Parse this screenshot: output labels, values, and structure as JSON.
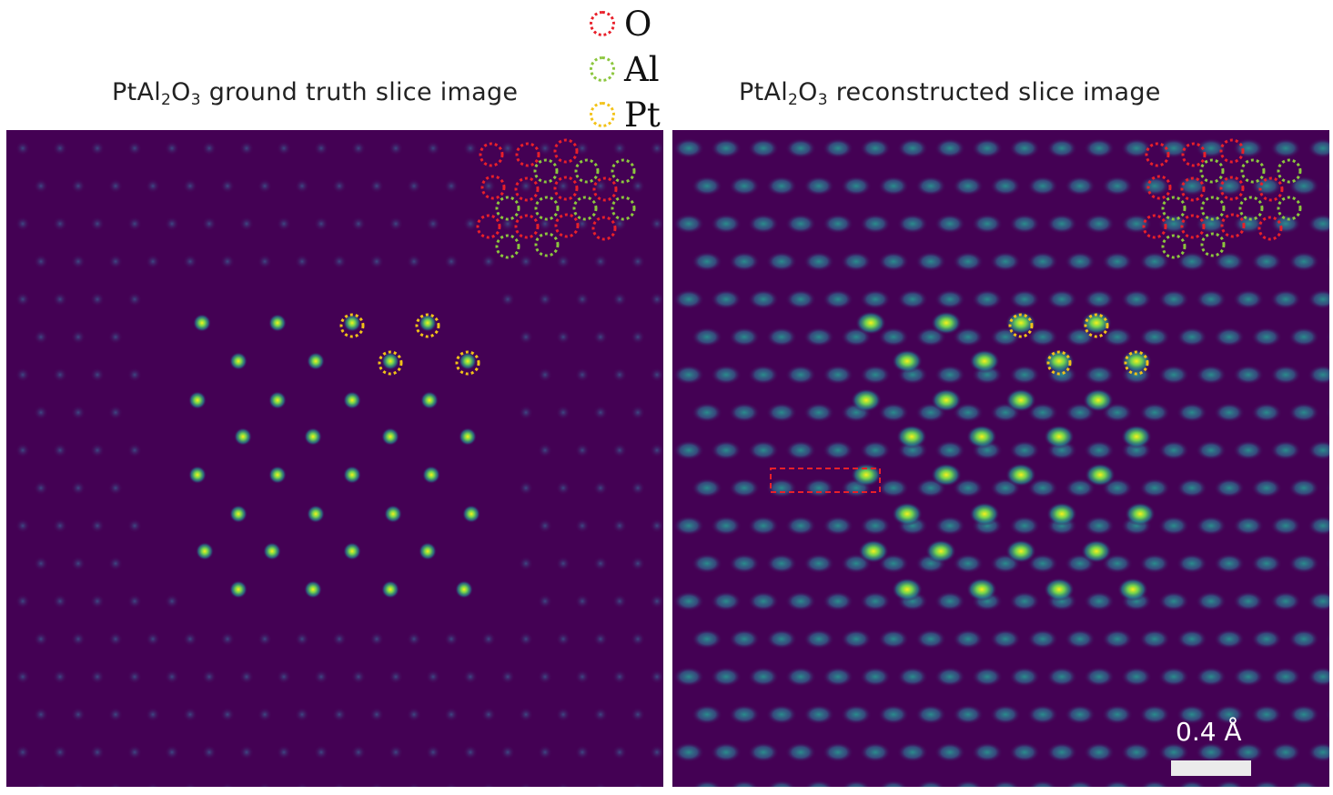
{
  "titles": {
    "left": {
      "prefix": "PtAl",
      "sub1": "2",
      "mid": "O",
      "sub2": "3",
      "suffix": " ground truth slice image"
    },
    "right": {
      "prefix": "PtAl",
      "sub1": "2",
      "mid": "O",
      "sub2": "3",
      "suffix": " reconstructed slice image"
    }
  },
  "legend": [
    {
      "label": "O",
      "color": "#e8202a"
    },
    {
      "label": "Al",
      "color": "#8cc63e"
    },
    {
      "label": "Pt",
      "color": "#f2c218"
    }
  ],
  "scalebar": {
    "label": "0.4 Å"
  },
  "colors": {
    "background": "#440154",
    "pt_center": "#f4f21c",
    "pt_mid": "#3fbe72",
    "dot_center": "#2a8c8c",
    "dot_faint": "#3a5590",
    "highlight_box": "#e8202a"
  }
}
